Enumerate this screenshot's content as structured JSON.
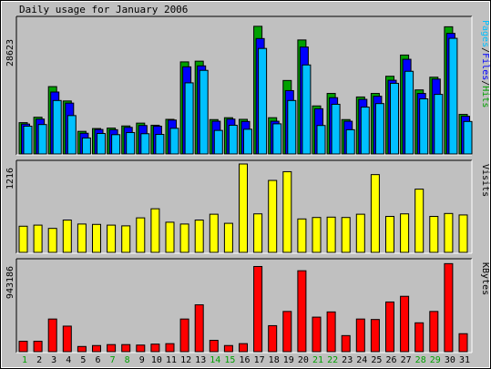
{
  "chart_data": [
    {
      "type": "bar",
      "title": "Daily usage for January 2006",
      "categories": [
        "1",
        "2",
        "3",
        "4",
        "5",
        "6",
        "7",
        "8",
        "9",
        "10",
        "11",
        "12",
        "13",
        "14",
        "15",
        "16",
        "17",
        "18",
        "19",
        "20",
        "21",
        "22",
        "23",
        "24",
        "25",
        "26",
        "27",
        "28",
        "29",
        "30",
        "31"
      ],
      "weekend_categories": [
        "1",
        "7",
        "8",
        "14",
        "15",
        "21",
        "22",
        "28",
        "29"
      ],
      "ymax_label": "28623",
      "ylim": [
        0,
        28623
      ],
      "legend": {
        "pages": "Pages",
        "files": "Files",
        "hits": "Hits",
        "sep": "/"
      },
      "colors": {
        "hits": "#00a000",
        "files": "#0000ff",
        "pages": "#00c0ff"
      },
      "series": [
        {
          "name": "Hits",
          "values": [
            6650,
            7800,
            14300,
            11250,
            4800,
            5400,
            5500,
            5950,
            6550,
            6100,
            7350,
            19550,
            19700,
            7300,
            7700,
            7350,
            27100,
            7700,
            15600,
            24200,
            10200,
            12850,
            7300,
            12100,
            12850,
            16500,
            21000,
            13600,
            16300,
            27000,
            8400
          ]
        },
        {
          "name": "Files",
          "values": [
            6350,
            7400,
            13150,
            10800,
            4400,
            5200,
            5150,
            5650,
            6050,
            5900,
            7200,
            18500,
            18700,
            6950,
            7400,
            6900,
            24500,
            6950,
            13450,
            22700,
            9600,
            11950,
            6950,
            11600,
            12250,
            15650,
            20100,
            12850,
            15900,
            25600,
            8000
          ]
        },
        {
          "name": "Pages",
          "values": [
            5900,
            6250,
            11350,
            8150,
            3400,
            4350,
            4100,
            4550,
            4300,
            4150,
            5450,
            15100,
            17750,
            5000,
            6100,
            5250,
            22400,
            6400,
            11350,
            18900,
            6050,
            10550,
            5150,
            9950,
            10700,
            15000,
            17550,
            11700,
            12650,
            24550,
            6900
          ]
        }
      ]
    },
    {
      "type": "bar",
      "ylabel": "Visits",
      "ymax_label": "1216",
      "ylim": [
        0,
        1216
      ],
      "colors": {
        "visits": "#ffff00"
      },
      "categories": [
        "1",
        "2",
        "3",
        "4",
        "5",
        "6",
        "7",
        "8",
        "9",
        "10",
        "11",
        "12",
        "13",
        "14",
        "15",
        "16",
        "17",
        "18",
        "19",
        "20",
        "21",
        "22",
        "23",
        "24",
        "25",
        "26",
        "27",
        "28",
        "29",
        "30",
        "31"
      ],
      "series": [
        {
          "name": "Visits",
          "values": [
            360,
            375,
            330,
            445,
            390,
            385,
            375,
            365,
            475,
            600,
            415,
            390,
            445,
            525,
            400,
            1216,
            530,
            990,
            1110,
            460,
            480,
            485,
            480,
            525,
            1070,
            495,
            530,
            870,
            495,
            535,
            515
          ]
        }
      ]
    },
    {
      "type": "bar",
      "ylabel": "KBytes",
      "ymax_label": "943186",
      "ylim": [
        0,
        943186
      ],
      "colors": {
        "kbytes": "#ff0000"
      },
      "categories": [
        "1",
        "2",
        "3",
        "4",
        "5",
        "6",
        "7",
        "8",
        "9",
        "10",
        "11",
        "12",
        "13",
        "14",
        "15",
        "16",
        "17",
        "18",
        "19",
        "20",
        "21",
        "22",
        "23",
        "24",
        "25",
        "26",
        "27",
        "28",
        "29",
        "30",
        "31"
      ],
      "series": [
        {
          "name": "KBytes",
          "values": [
            110000,
            110000,
            345000,
            270000,
            55000,
            65000,
            75000,
            75000,
            70000,
            80000,
            85000,
            345000,
            495000,
            120000,
            65000,
            85000,
            900000,
            275000,
            425000,
            855000,
            365000,
            420000,
            170000,
            345000,
            340000,
            525000,
            585000,
            305000,
            425000,
            930000,
            190000
          ]
        }
      ]
    }
  ]
}
